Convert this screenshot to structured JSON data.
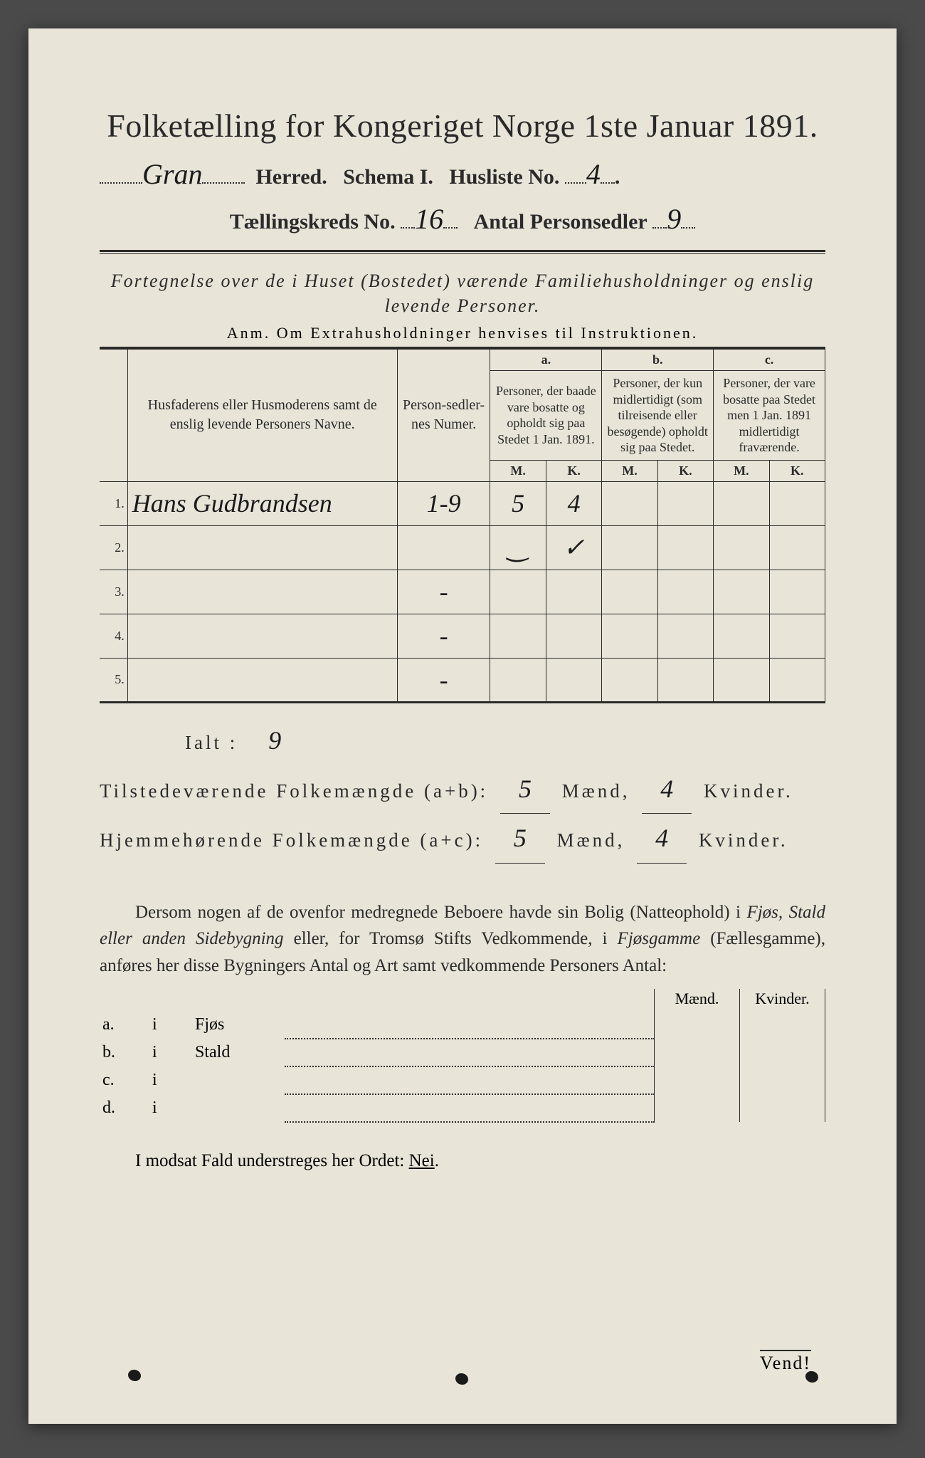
{
  "colors": {
    "paper": "#e8e4d8",
    "ink": "#2a2a2a",
    "handwriting": "#1a1a1a",
    "background": "#4a4a4a"
  },
  "header": {
    "title": "Folketælling for Kongeriget Norge 1ste Januar 1891.",
    "herred_hw": "Gran",
    "herred_label": "Herred.",
    "schema": "Schema I.",
    "husliste_label": "Husliste No.",
    "husliste_hw": "4",
    "kreds_label": "Tællingskreds No.",
    "kreds_hw": "16",
    "antal_label": "Antal Personsedler",
    "antal_hw": "9"
  },
  "subtitle": "Fortegnelse over de i Huset (Bostedet) værende Familiehusholdninger og enslig levende Personer.",
  "anm": "Anm.  Om Extrahusholdninger henvises til Instruktionen.",
  "table": {
    "col_name": "Husfaderens eller Husmoderens samt de enslig levende Personers Navne.",
    "col_num": "Person-sedler-nes Numer.",
    "group_a_label": "a.",
    "group_a": "Personer, der baade vare bosatte og opholdt sig paa Stedet 1 Jan. 1891.",
    "group_b_label": "b.",
    "group_b": "Personer, der kun midlertidigt (som tilreisende eller besøgende) opholdt sig paa Stedet.",
    "group_c_label": "c.",
    "group_c": "Personer, der vare bosatte paa Stedet men 1 Jan. 1891 midlertidigt fraværende.",
    "M": "M.",
    "K": "K.",
    "rows": [
      {
        "n": "1.",
        "name": "Hans Gudbrandsen",
        "num": "1-9",
        "aM": "5",
        "aK": "4",
        "bM": "",
        "bK": "",
        "cM": "",
        "cK": ""
      },
      {
        "n": "2.",
        "name": "",
        "num": "",
        "aM": "‿",
        "aK": "✓",
        "bM": "",
        "bK": "",
        "cM": "",
        "cK": ""
      },
      {
        "n": "3.",
        "name": "",
        "num": "-",
        "aM": "",
        "aK": "",
        "bM": "",
        "bK": "",
        "cM": "",
        "cK": ""
      },
      {
        "n": "4.",
        "name": "",
        "num": "-",
        "aM": "",
        "aK": "",
        "bM": "",
        "bK": "",
        "cM": "",
        "cK": ""
      },
      {
        "n": "5.",
        "name": "",
        "num": "-",
        "aM": "",
        "aK": "",
        "bM": "",
        "bK": "",
        "cM": "",
        "cK": ""
      }
    ]
  },
  "totals": {
    "ialt_label": "Ialt :",
    "ialt_hw": "9",
    "line1_label": "Tilstedeværende Folkemængde (a+b):",
    "line1_m": "5",
    "line1_k": "4",
    "line2_label": "Hjemmehørende Folkemængde (a+c):",
    "line2_m": "5",
    "line2_k": "4",
    "maend": "Mænd,",
    "kvinder": "Kvinder."
  },
  "para": "Dersom nogen af de ovenfor medregnede Beboere havde sin Bolig (Natteophold) i Fjøs, Stald eller anden Sidebygning eller, for Tromsø Stifts Vedkommende, i Fjøsgamme (Fællesgamme), anføres her disse Bygningers Antal og Art samt vedkommende Personers Antal:",
  "side": {
    "head_m": "Mænd.",
    "head_k": "Kvinder.",
    "rows": [
      {
        "a": "a.",
        "i": "i",
        "type": "Fjøs"
      },
      {
        "a": "b.",
        "i": "i",
        "type": "Stald"
      },
      {
        "a": "c.",
        "i": "i",
        "type": ""
      },
      {
        "a": "d.",
        "i": "i",
        "type": ""
      }
    ]
  },
  "nei": "I modsat Fald understreges her Ordet: Nei.",
  "nei_word": "Nei",
  "vend": "Vend!"
}
